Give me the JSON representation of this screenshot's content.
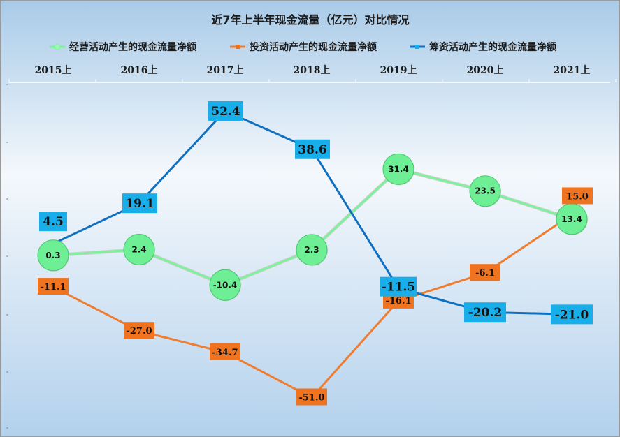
{
  "chart_data": {
    "type": "line",
    "title": "近7年上半年现金流量（亿元）对比情况",
    "categories": [
      "2015上",
      "2016上",
      "2017上",
      "2018上",
      "2019上",
      "2020上",
      "2021上"
    ],
    "series": [
      {
        "name": "经营活动产生的现金流量净额",
        "values": [
          0.3,
          2.4,
          -10.4,
          2.3,
          31.4,
          23.5,
          13.4
        ],
        "color": "#7cf29a",
        "label_style": "circle"
      },
      {
        "name": "投资活动产生的现金流量净额",
        "values": [
          -11.1,
          -27.0,
          -34.7,
          -51.0,
          -16.1,
          -6.1,
          15.0
        ],
        "color": "#ef7d31",
        "label_style": "box"
      },
      {
        "name": "筹资活动产生的现金流量净额",
        "values": [
          4.5,
          19.1,
          52.4,
          38.6,
          -11.5,
          -20.2,
          -21.0
        ],
        "color": "#0f6fc0",
        "label_style": "box"
      }
    ],
    "ylim": [
      -60,
      70
    ],
    "grid": false,
    "legend_position": "top",
    "category_labels_position": "top",
    "label_colors": {
      "green_circle": "#6fef95",
      "orange_box": "#f0741f",
      "blue_box": "#17aeea"
    }
  }
}
